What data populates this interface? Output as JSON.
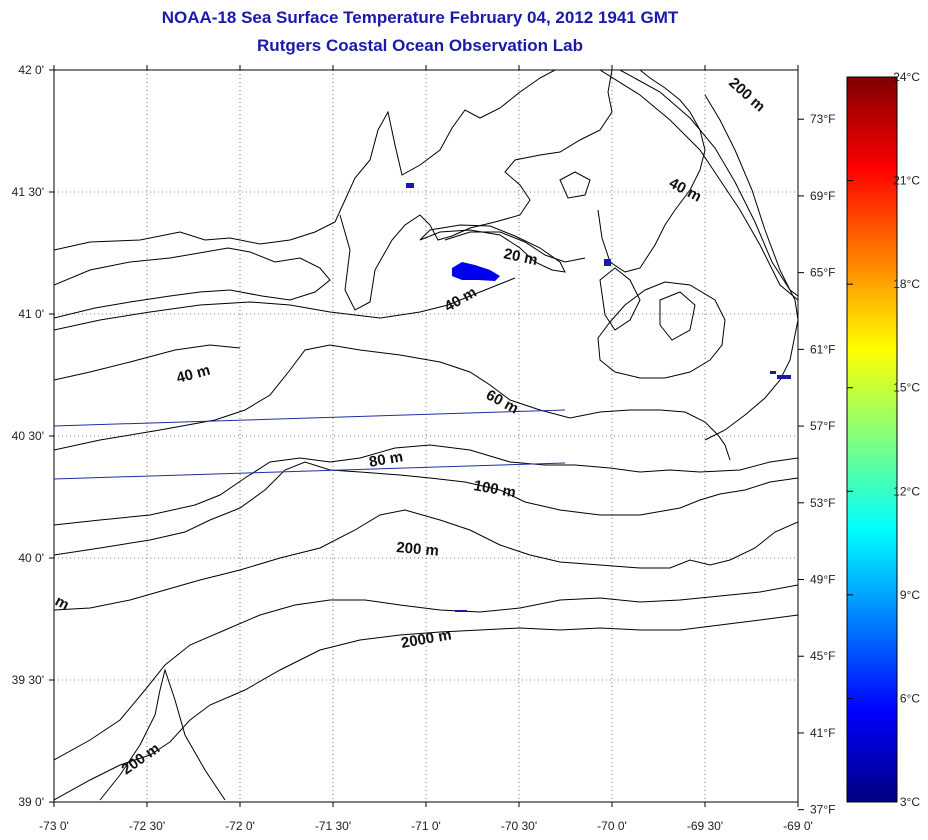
{
  "title": {
    "line1": "NOAA-18 Sea Surface Temperature February 04, 2012 1941 GMT",
    "line2": "Rutgers Coastal Ocean Observation Lab"
  },
  "map": {
    "lon_range": [
      -73.0,
      -69.0
    ],
    "lat_range": [
      39.0,
      42.0
    ],
    "lon_ticks": [
      {
        "value": -73.0,
        "label": "-73 0'"
      },
      {
        "value": -72.5,
        "label": "-72 30'"
      },
      {
        "value": -72.0,
        "label": "-72 0'"
      },
      {
        "value": -71.5,
        "label": "-71 30'"
      },
      {
        "value": -71.0,
        "label": "-71 0'"
      },
      {
        "value": -70.5,
        "label": "-70 30'"
      },
      {
        "value": -70.0,
        "label": "-70 0'"
      },
      {
        "value": -69.5,
        "label": "-69 30'"
      },
      {
        "value": -69.0,
        "label": "-69 0'"
      }
    ],
    "lat_ticks": [
      {
        "value": 42.0,
        "label": "42 0'"
      },
      {
        "value": 41.5,
        "label": "41 30'"
      },
      {
        "value": 41.0,
        "label": "41 0'"
      },
      {
        "value": 40.5,
        "label": "40 30'"
      },
      {
        "value": 40.0,
        "label": "40 0'"
      },
      {
        "value": 39.5,
        "label": "39 30'"
      },
      {
        "value": 39.0,
        "label": "39 0'"
      }
    ],
    "fahrenheit_ticks": [
      {
        "value": 37,
        "label": "37°F"
      },
      {
        "value": 41,
        "label": "41°F"
      },
      {
        "value": 45,
        "label": "45°F"
      },
      {
        "value": 49,
        "label": "49°F"
      },
      {
        "value": 53,
        "label": "53°F"
      },
      {
        "value": 57,
        "label": "57°F"
      },
      {
        "value": 61,
        "label": "61°F"
      },
      {
        "value": 65,
        "label": "65°F"
      },
      {
        "value": 69,
        "label": "69°F"
      },
      {
        "value": 73,
        "label": "73°F"
      }
    ],
    "contour_labels": [
      "20 m",
      "40 m",
      "40 m",
      "40 m",
      "60 m",
      "80 m",
      "100 m",
      "200 m",
      "2000 m",
      "200 m",
      "200 m",
      "m"
    ]
  },
  "colorbar": {
    "range_c": [
      3,
      24
    ],
    "ticks": [
      {
        "value": 3,
        "label": "3°C"
      },
      {
        "value": 6,
        "label": "6°C"
      },
      {
        "value": 9,
        "label": "9°C"
      },
      {
        "value": 12,
        "label": "12°C"
      },
      {
        "value": 15,
        "label": "15°C"
      },
      {
        "value": 18,
        "label": "18°C"
      },
      {
        "value": 21,
        "label": "21°C"
      },
      {
        "value": 24,
        "label": "24°C"
      }
    ],
    "colors": [
      "#00007f",
      "#0000ff",
      "#007fff",
      "#00ffff",
      "#7fff7f",
      "#ffff00",
      "#ff7f00",
      "#ff0000",
      "#7f0000"
    ]
  }
}
